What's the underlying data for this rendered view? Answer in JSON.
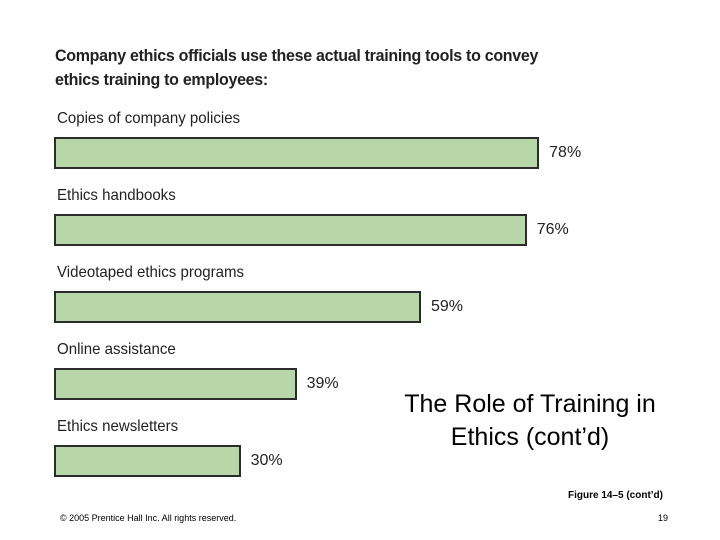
{
  "chart_data": {
    "type": "bar",
    "orientation": "horizontal",
    "title": "Company ethics officials use these actual training tools to convey ethics training to employees:",
    "categories": [
      "Copies of company policies",
      "Ethics handbooks",
      "Videotaped ethics programs",
      "Online assistance",
      "Ethics newsletters"
    ],
    "values": [
      78,
      76,
      59,
      39,
      30
    ],
    "value_labels": [
      "78%",
      "76%",
      "59%",
      "39%",
      "30%"
    ],
    "xlim": [
      0,
      100
    ],
    "grid": false,
    "legend": "none",
    "bar_color": "#b7d7a8"
  },
  "slide": {
    "title": "The Role of Training in Ethics (cont’d)",
    "figure_caption": "Figure 14–5 (cont’d)",
    "copyright": "© 2005 Prentice Hall Inc. All rights reserved.",
    "page_number": "19"
  }
}
